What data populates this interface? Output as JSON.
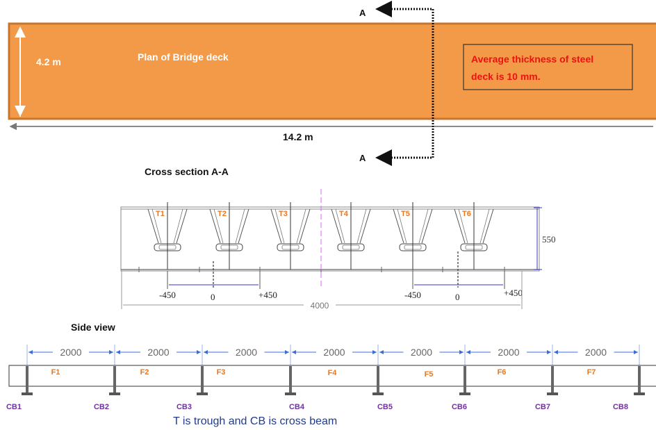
{
  "plan": {
    "title": "Plan of Bridge deck",
    "width_label": "4.2 m",
    "length_label": "14.2 m",
    "note": [
      "Average thickness of steel",
      "deck is 10 mm."
    ],
    "section_marker": "A",
    "colors": {
      "deck": "#f39a48",
      "deck_edge": "#c8752a",
      "note": "#ee1111"
    }
  },
  "cross_section": {
    "title": "Cross section A-A",
    "troughs": [
      "T1",
      "T2",
      "T3",
      "T4",
      "T5",
      "T6"
    ],
    "height_label": "550",
    "width_label": "4000",
    "offsets_left": [
      "-450",
      "0",
      "+450"
    ],
    "offsets_right": [
      "-450",
      "0",
      "+450"
    ],
    "colors": {
      "trough_label": "#e87722",
      "axis": "#e066ff",
      "dim": "#3333cc"
    }
  },
  "side_view": {
    "title": "Side view",
    "spans": [
      "2000",
      "2000",
      "2000",
      "2000",
      "2000",
      "2000",
      "2000"
    ],
    "fields": [
      "F1",
      "F2",
      "F3",
      "F4",
      "F5",
      "F6",
      "F7"
    ],
    "cross_beams": [
      "CB1",
      "CB2",
      "CB3",
      "CB4",
      "CB5",
      "CB6",
      "CB7",
      "CB8"
    ],
    "colors": {
      "field_label": "#e87722",
      "cb_label": "#7030a0",
      "dim": "#3a6fd0"
    }
  },
  "caption": {
    "text": "T is trough and CB is cross beam",
    "color": "#1f3a93"
  }
}
